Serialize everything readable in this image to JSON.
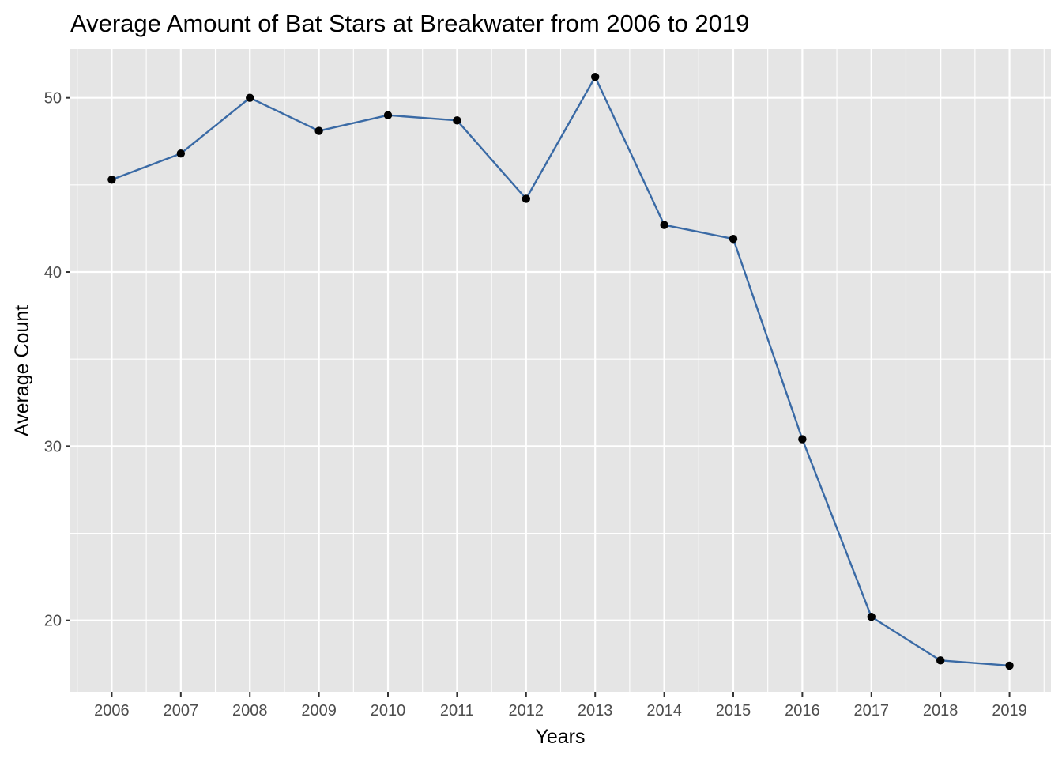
{
  "chart_data": {
    "type": "line",
    "title": "Average Amount of Bat Stars at Breakwater from 2006 to 2019",
    "xlabel": "Years",
    "ylabel": "Average Count",
    "categories": [
      "2006",
      "2007",
      "2008",
      "2009",
      "2010",
      "2011",
      "2012",
      "2013",
      "2014",
      "2015",
      "2016",
      "2017",
      "2018",
      "2019"
    ],
    "series": [
      {
        "name": "Average Count",
        "values": [
          45.3,
          46.8,
          50.0,
          48.1,
          49.0,
          48.7,
          44.2,
          51.2,
          42.7,
          41.9,
          30.4,
          20.2,
          17.7,
          17.4
        ]
      }
    ],
    "ylim": [
      15.9,
      52.8
    ],
    "yticks": [
      20,
      30,
      40,
      50
    ],
    "ytick_labels": [
      "20",
      "30",
      "40",
      "50"
    ],
    "grid": true,
    "legend": "none",
    "colors": {
      "line": "#3a6aa5",
      "point": "#000000",
      "panel": "#e5e5e5",
      "grid": "#ffffff"
    }
  }
}
